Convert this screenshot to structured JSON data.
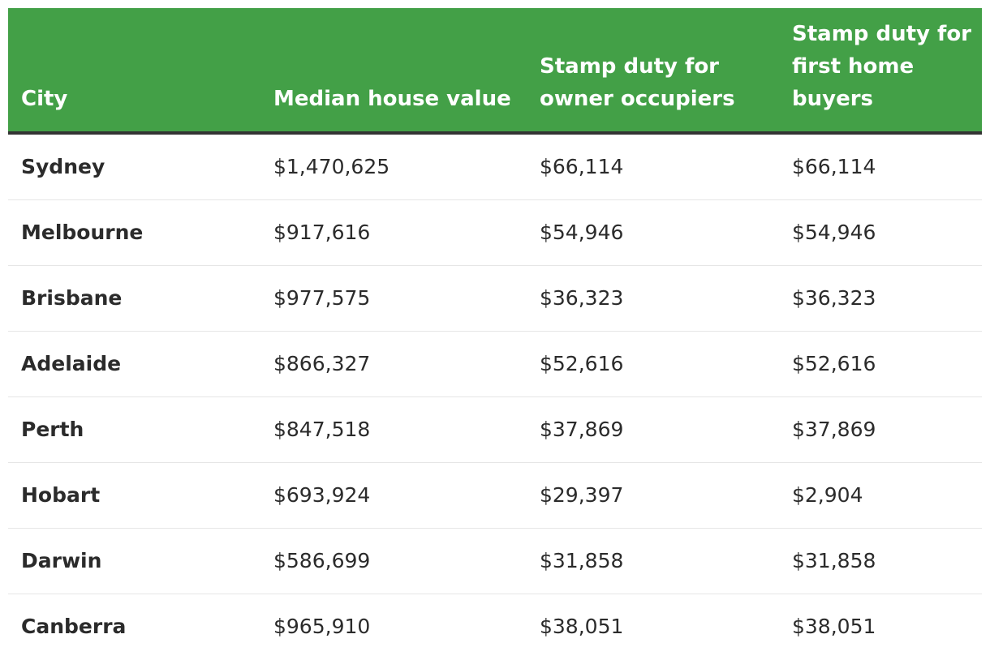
{
  "colors": {
    "header_background": "#43a047",
    "header_text": "#ffffff",
    "body_text": "#2b2b2b",
    "row_divider": "#e6e6e6"
  },
  "table": {
    "headers": [
      "City",
      "Median house value",
      "Stamp duty for\nowner occupiers",
      "Stamp duty for\nfirst home\nbuyers"
    ],
    "rows": [
      [
        "Sydney",
        "$1,470,625",
        "$66,114",
        "$66,114"
      ],
      [
        "Melbourne",
        "$917,616",
        "$54,946",
        "$54,946"
      ],
      [
        "Brisbane",
        "$977,575",
        "$36,323",
        "$36,323"
      ],
      [
        "Adelaide",
        "$866,327",
        "$52,616",
        "$52,616"
      ],
      [
        "Perth",
        "$847,518",
        "$37,869",
        "$37,869"
      ],
      [
        "Hobart",
        "$693,924",
        "$29,397",
        "$2,904"
      ],
      [
        "Darwin",
        "$586,699",
        "$31,858",
        "$31,858"
      ],
      [
        "Canberra",
        "$965,910",
        "$38,051",
        "$38,051"
      ]
    ]
  }
}
